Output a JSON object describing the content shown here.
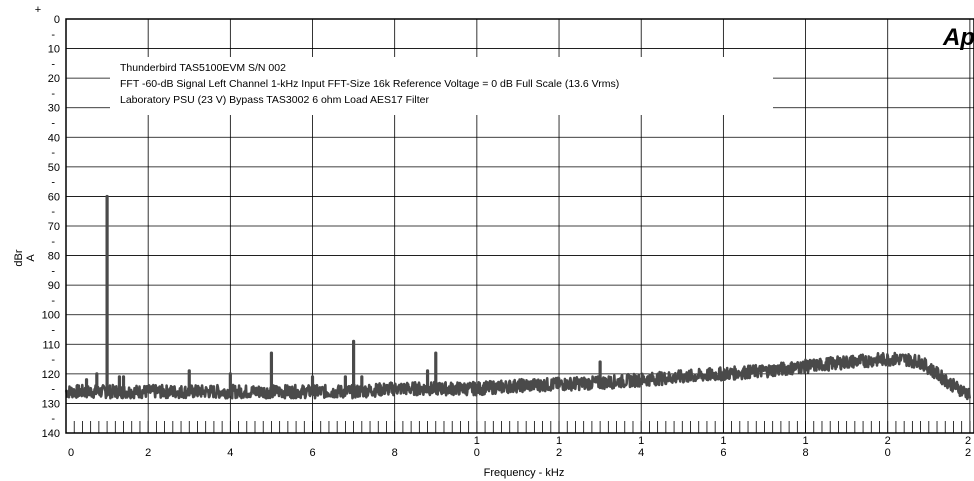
{
  "logo": "Ap",
  "chart_data": {
    "type": "line",
    "title": "",
    "xlabel": "Frequency - kHz",
    "ylabel": "dBr",
    "ylabel_unit": "A",
    "xlim": [
      0,
      22
    ],
    "ylim": [
      -140,
      0
    ],
    "y_axis_inverted_labels": true,
    "grid": true,
    "x_tick_values": [
      0,
      2,
      4,
      6,
      8,
      10,
      12,
      14,
      16,
      18,
      20,
      22
    ],
    "x_tick_labels": [
      {
        "top": "",
        "bottom": "0"
      },
      {
        "top": "",
        "bottom": "2"
      },
      {
        "top": "",
        "bottom": "4"
      },
      {
        "top": "",
        "bottom": "6"
      },
      {
        "top": "",
        "bottom": "8"
      },
      {
        "top": "1",
        "bottom": "0"
      },
      {
        "top": "1",
        "bottom": "2"
      },
      {
        "top": "1",
        "bottom": "4"
      },
      {
        "top": "1",
        "bottom": "6"
      },
      {
        "top": "1",
        "bottom": "8"
      },
      {
        "top": "2",
        "bottom": "0"
      },
      {
        "top": "2",
        "bottom": "2"
      }
    ],
    "y_tick_labels": [
      "0",
      "10",
      "20",
      "30",
      "40",
      "50",
      "60",
      "70",
      "80",
      "90",
      "100",
      "110",
      "120",
      "130",
      "140"
    ],
    "y_minor_label": "-",
    "y_top_label": "+",
    "annotation_lines": [
      "Thunderbird  TAS5100EVM  S/N 002",
      "FFT -60-dB Signal    Left Channel    1-kHz Input    FFT-Size 16k    Reference Voltage = 0 dB    Full Scale (13.6 Vrms)",
      "Laboratory PSU (23 V)    Bypass TAS3002    6 ohm Load    AES17 Filter"
    ],
    "series": [
      {
        "color": "#4a4a4a",
        "noise_floor_x": [
          0,
          1,
          2,
          3,
          4,
          5,
          6,
          7,
          8,
          9,
          10,
          11,
          12,
          13,
          14,
          15,
          16,
          17,
          18,
          19,
          20,
          20.4,
          20.8,
          21.2,
          21.6,
          22
        ],
        "noise_floor_y": [
          -126,
          -126,
          -126,
          -126,
          -126,
          -126,
          -126,
          -126,
          -125,
          -125,
          -125,
          -124,
          -123.5,
          -123,
          -122,
          -121,
          -120,
          -119,
          -117.5,
          -116,
          -115,
          -115,
          -116,
          -120,
          -124,
          -127
        ],
        "peaks": [
          {
            "x": 1.0,
            "y": -60
          },
          {
            "x": 0.75,
            "y": -120
          },
          {
            "x": 0.5,
            "y": -122
          },
          {
            "x": 1.3,
            "y": -121
          },
          {
            "x": 1.4,
            "y": -121
          },
          {
            "x": 3.0,
            "y": -119
          },
          {
            "x": 4.0,
            "y": -120
          },
          {
            "x": 5.0,
            "y": -113
          },
          {
            "x": 6.0,
            "y": -121
          },
          {
            "x": 6.8,
            "y": -121
          },
          {
            "x": 7.0,
            "y": -109
          },
          {
            "x": 7.2,
            "y": -121
          },
          {
            "x": 8.8,
            "y": -119
          },
          {
            "x": 9.0,
            "y": -113
          },
          {
            "x": 13.0,
            "y": -116
          }
        ]
      }
    ]
  }
}
